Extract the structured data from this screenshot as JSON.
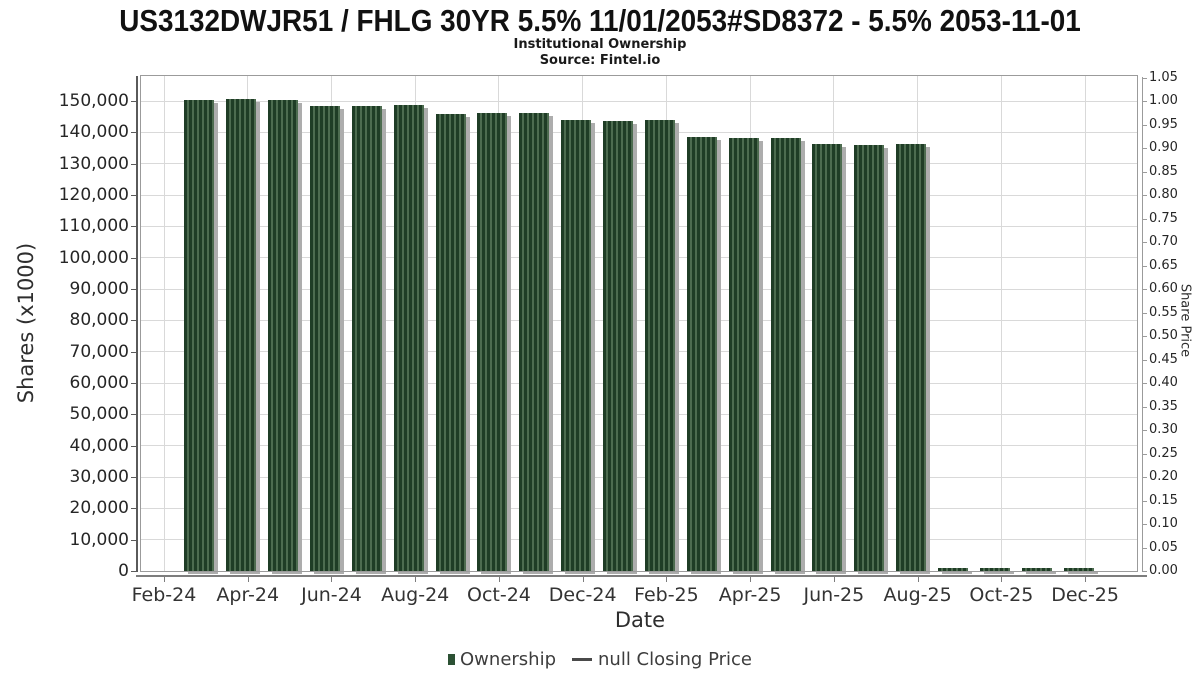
{
  "title": "US3132DWJR51 / FHLG 30YR 5.5% 11/01/2053#SD8372 - 5.5% 2053-11-01",
  "subtitle": "Institutional Ownership",
  "source": "Source: Fintel.io",
  "axes": {
    "xlabel": "Date",
    "ylabel_left": "Shares (x1000)",
    "ylabel_right": "Share Price"
  },
  "legend": {
    "ownership_label": "Ownership",
    "price_label": "null Closing Price"
  },
  "colors": {
    "bar_stripe_dark": "#1f3d26",
    "bar_stripe_light": "#4d6c50",
    "bar_shadow": "#adadad",
    "legend_swatch": "#2c5134",
    "price_line": "#4a4a4a",
    "gridline": "#d9d9d9",
    "plot_border": "#9b9b9b"
  },
  "chart_data": {
    "type": "bar",
    "title": "US3132DWJR51 / FHLG 30YR 5.5% 11/01/2053#SD8372 - 5.5% 2053-11-01",
    "subtitle": "Institutional Ownership",
    "source": "Source: Fintel.io",
    "xlabel": "Date",
    "ylabel_left": "Shares (x1000)",
    "ylabel_right": "Share Price",
    "unit_note": "left axis in shares x1000",
    "categories": [
      "Mar-24",
      "Apr-24",
      "May-24",
      "Jun-24",
      "Jul-24",
      "Aug-24",
      "Sep-24",
      "Oct-24",
      "Nov-24",
      "Dec-24",
      "Jan-25",
      "Feb-25",
      "Mar-25",
      "Apr-25",
      "May-25",
      "Jun-25",
      "Jul-25",
      "Aug-25",
      "Sep-25",
      "Oct-25",
      "Nov-25",
      "Dec-25"
    ],
    "series": [
      {
        "name": "Ownership",
        "type": "bar",
        "values": [
          150400,
          150600,
          150500,
          148400,
          148400,
          148600,
          145900,
          146200,
          146100,
          144000,
          143800,
          143900,
          138500,
          138200,
          138200,
          136200,
          136100,
          136300,
          900,
          900,
          900,
          900
        ]
      },
      {
        "name": "null Closing Price",
        "type": "line",
        "values": []
      }
    ],
    "ylim_left": [
      0,
      158000
    ],
    "ylim_right": [
      0,
      1.0533
    ],
    "y_ticks_left": [
      "0",
      "10,000",
      "20,000",
      "30,000",
      "40,000",
      "50,000",
      "60,000",
      "70,000",
      "80,000",
      "90,000",
      "100,000",
      "110,000",
      "120,000",
      "130,000",
      "140,000",
      "150,000"
    ],
    "y_ticks_right": [
      "0.00",
      "0.05",
      "0.10",
      "0.15",
      "0.20",
      "0.25",
      "0.30",
      "0.35",
      "0.40",
      "0.45",
      "0.50",
      "0.55",
      "0.60",
      "0.65",
      "0.70",
      "0.75",
      "0.80",
      "0.85",
      "0.90",
      "0.95",
      "1.00",
      "1.05"
    ],
    "x_ticks": [
      "Feb-24",
      "Apr-24",
      "Jun-24",
      "Aug-24",
      "Oct-24",
      "Dec-24",
      "Feb-25",
      "Apr-25",
      "Jun-25",
      "Aug-25",
      "Oct-25",
      "Dec-25"
    ],
    "grid": true,
    "legend_position": "bottom"
  }
}
